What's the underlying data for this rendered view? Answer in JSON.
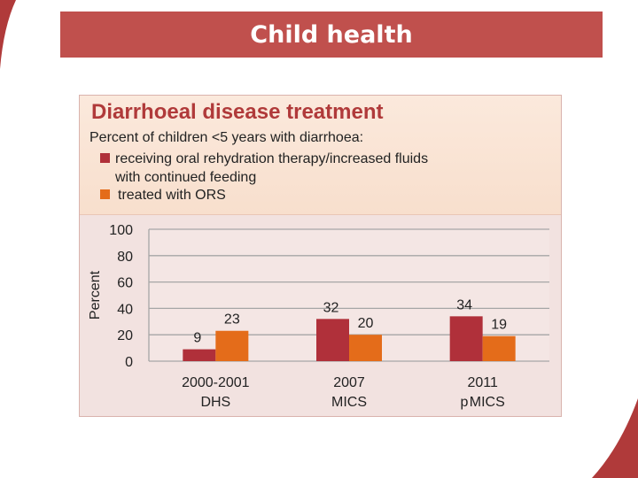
{
  "slide": {
    "title": "Child health"
  },
  "colors": {
    "banner": "#c0504d",
    "series_ort": "#b0303a",
    "series_ors": "#e46c1a",
    "title_text": "#b03a3a"
  },
  "chart_data": {
    "type": "bar",
    "title": "Diarrhoeal disease treatment",
    "subtitle": "Percent of children <5 years with diarrhoea:",
    "ylabel": "Percent",
    "xlabel": "",
    "ylim": [
      0,
      100
    ],
    "yticks": [
      0,
      20,
      40,
      60,
      80,
      100
    ],
    "categories": [
      {
        "line1": "2000-2001",
        "line2": "DHS"
      },
      {
        "line1": "2007",
        "line2": "MICS"
      },
      {
        "line1": "2011",
        "line2": "p MICS"
      }
    ],
    "series": [
      {
        "name": "receiving oral rehydration therapy/increased fluids with continued feeding",
        "legend_line1": "receiving oral rehydration therapy/increased fluids",
        "legend_line2": "with continued feeding",
        "values": [
          9,
          32,
          34
        ]
      },
      {
        "name": "treated with ORS",
        "legend_line1": "treated with ORS",
        "values": [
          23,
          20,
          19
        ]
      }
    ],
    "legend_position": "top-left",
    "grid": true
  }
}
